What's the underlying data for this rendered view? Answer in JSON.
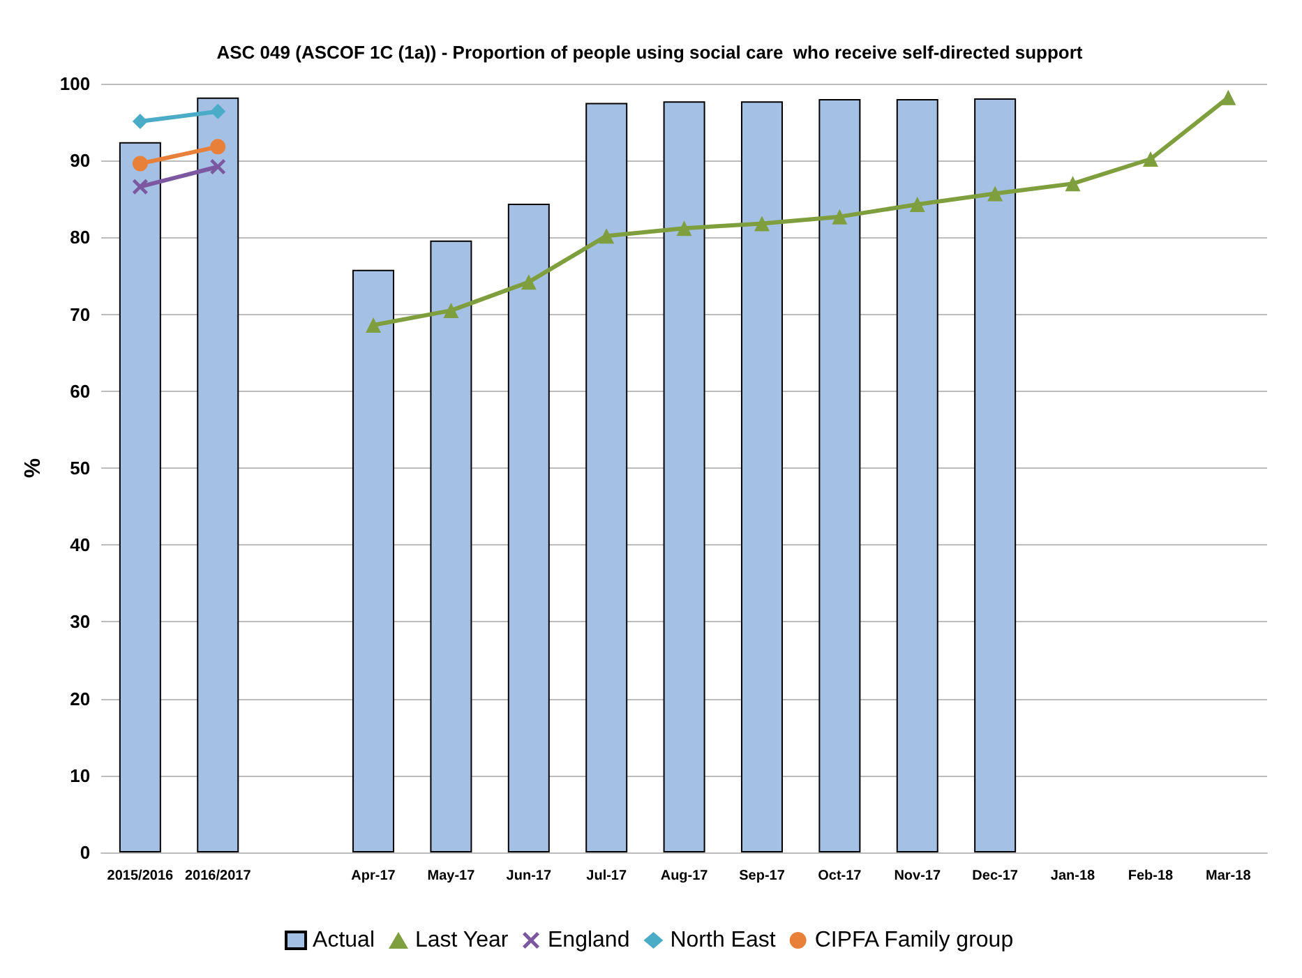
{
  "chart_data": {
    "type": "bar",
    "title": "ASC 049 (ASCOF 1C (1a)) - Proportion of people using social care  who receive self-directed support",
    "ylabel": "%",
    "categories": [
      "2015/2016",
      "2016/2017",
      null,
      "Apr-17",
      "May-17",
      "Jun-17",
      "Jul-17",
      "Aug-17",
      "Sep-17",
      "Oct-17",
      "Nov-17",
      "Dec-17",
      "Jan-18",
      "Feb-18",
      "Mar-18"
    ],
    "series": [
      {
        "name": "Actual",
        "color": "#a4c0e4",
        "values": [
          92.4,
          98.2,
          null,
          75.8,
          79.6,
          84.4,
          97.5,
          97.7,
          97.7,
          98.0,
          98.0,
          98.1,
          null,
          null,
          null
        ]
      },
      {
        "name": "Last Year",
        "type": "line",
        "marker": "triangle",
        "color": "#7f9f3f",
        "values": [
          null,
          null,
          null,
          68.6,
          70.5,
          74.2,
          80.2,
          81.2,
          81.8,
          82.7,
          84.3,
          85.7,
          87.0,
          90.2,
          98.2
        ]
      },
      {
        "name": "England",
        "type": "line",
        "marker": "cross",
        "color": "#7b58a0",
        "values": [
          86.6,
          89.2,
          null,
          null,
          null,
          null,
          null,
          null,
          null,
          null,
          null,
          null,
          null,
          null,
          null
        ]
      },
      {
        "name": "North East",
        "type": "line",
        "marker": "diamond",
        "color": "#4aacc6",
        "values": [
          95.1,
          96.4,
          null,
          null,
          null,
          null,
          null,
          null,
          null,
          null,
          null,
          null,
          null,
          null,
          null
        ]
      },
      {
        "name": "CIPFA Family group",
        "type": "line",
        "marker": "circle",
        "color": "#e8803a",
        "values": [
          89.6,
          91.8,
          null,
          null,
          null,
          null,
          null,
          null,
          null,
          null,
          null,
          null,
          null,
          null,
          null
        ]
      }
    ],
    "ylim": [
      0,
      100
    ],
    "yticks": [
      0,
      10,
      20,
      30,
      40,
      50,
      60,
      70,
      80,
      90,
      100
    ],
    "grid": "y",
    "legend": "bottom"
  }
}
